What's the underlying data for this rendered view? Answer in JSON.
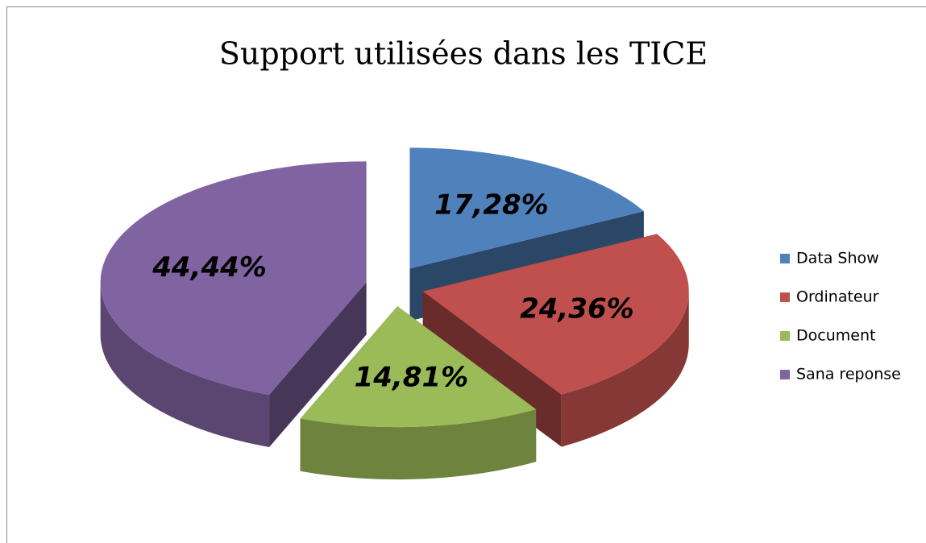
{
  "chart_data": {
    "type": "pie3d",
    "title": "Support utilisées dans les TICE",
    "categories": [
      "Data Show",
      "Ordinateur",
      "Document",
      "Sana reponse"
    ],
    "values": [
      17.28,
      24.36,
      14.81,
      44.44
    ],
    "value_labels": [
      "17,28%",
      "24,36%",
      "14,81%",
      "44,44%"
    ],
    "colors": [
      "#4f81bd",
      "#c0504d",
      "#9bbb59",
      "#8064a2"
    ],
    "legend": "right"
  }
}
